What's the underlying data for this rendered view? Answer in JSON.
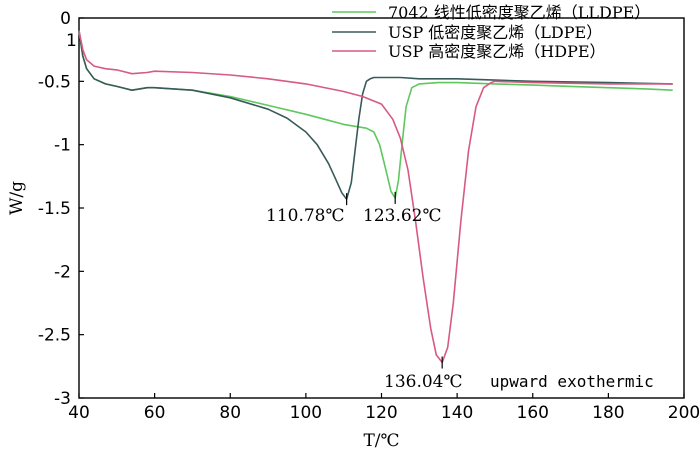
{
  "chart_data": {
    "type": "line",
    "xlabel": "T/℃",
    "ylabel": "W/g",
    "xlim": [
      40,
      200
    ],
    "ylim": [
      -3,
      0
    ],
    "xticks": [
      40,
      60,
      80,
      100,
      120,
      140,
      160,
      180,
      200
    ],
    "yticks": [
      0,
      -0.5,
      -1,
      -1.5,
      -2,
      -2.5,
      -3
    ],
    "ytick_labels": [
      "0",
      "-0.5",
      "-1",
      "-1.5",
      "-2",
      "-2.5",
      "-3"
    ],
    "legend_position": "top-right",
    "series": [
      {
        "name": "7042 线性低密度聚乙烯（LLDPE）",
        "color": "#5ec85e",
        "x": [
          40,
          41,
          42,
          44,
          47,
          50,
          54,
          58,
          60,
          70,
          80,
          90,
          100,
          105,
          110,
          114,
          116,
          118,
          119.5,
          121,
          122.5,
          123.62,
          124.5,
          125.5,
          126.5,
          128,
          130,
          135,
          140,
          150,
          160,
          170,
          180,
          190,
          197
        ],
        "y": [
          -0.1,
          -0.3,
          -0.4,
          -0.48,
          -0.52,
          -0.54,
          -0.57,
          -0.55,
          -0.55,
          -0.57,
          -0.62,
          -0.69,
          -0.76,
          -0.8,
          -0.84,
          -0.86,
          -0.87,
          -0.9,
          -1.0,
          -1.18,
          -1.37,
          -1.42,
          -1.28,
          -0.98,
          -0.7,
          -0.55,
          -0.52,
          -0.51,
          -0.51,
          -0.52,
          -0.53,
          -0.54,
          -0.55,
          -0.56,
          -0.57
        ]
      },
      {
        "name": "USP 低密度聚乙烯（LDPE）",
        "color": "#3a5a5a",
        "x": [
          40,
          41,
          42,
          44,
          47,
          50,
          54,
          58,
          60,
          70,
          80,
          90,
          95,
          100,
          103,
          106,
          108,
          109.5,
          110.78,
          112,
          113,
          114,
          115,
          116,
          117,
          118,
          120,
          125,
          130,
          140,
          150,
          160,
          180,
          197
        ],
        "y": [
          -0.1,
          -0.3,
          -0.4,
          -0.48,
          -0.52,
          -0.54,
          -0.57,
          -0.55,
          -0.55,
          -0.57,
          -0.63,
          -0.72,
          -0.79,
          -0.9,
          -1.0,
          -1.15,
          -1.28,
          -1.38,
          -1.43,
          -1.3,
          -1.05,
          -0.8,
          -0.6,
          -0.5,
          -0.48,
          -0.47,
          -0.47,
          -0.47,
          -0.48,
          -0.48,
          -0.49,
          -0.5,
          -0.51,
          -0.52
        ]
      },
      {
        "name": "USP 高密度聚乙烯（HDPE）",
        "color": "#d75a82",
        "x": [
          40,
          41,
          42,
          44,
          47,
          50,
          54,
          58,
          60,
          70,
          80,
          90,
          100,
          110,
          115,
          120,
          123,
          125,
          127,
          129,
          131,
          133,
          134.5,
          136.04,
          137.5,
          139,
          141,
          143,
          145,
          147,
          149,
          150,
          160,
          180,
          197
        ],
        "y": [
          -0.1,
          -0.25,
          -0.33,
          -0.38,
          -0.4,
          -0.41,
          -0.44,
          -0.43,
          -0.42,
          -0.43,
          -0.45,
          -0.48,
          -0.52,
          -0.58,
          -0.62,
          -0.68,
          -0.8,
          -0.95,
          -1.2,
          -1.6,
          -2.05,
          -2.45,
          -2.66,
          -2.72,
          -2.6,
          -2.25,
          -1.6,
          -1.05,
          -0.7,
          -0.55,
          -0.51,
          -0.5,
          -0.51,
          -0.52,
          -0.52
        ]
      }
    ],
    "annotations": [
      {
        "text": "110.78℃",
        "x": 110.78,
        "y": -1.43
      },
      {
        "text": "123.62℃",
        "x": 123.62,
        "y": -1.42
      },
      {
        "text": "136.04℃",
        "x": 136.04,
        "y": -2.72
      },
      {
        "text": "upward exothermic"
      }
    ],
    "top_start_label": "1"
  }
}
